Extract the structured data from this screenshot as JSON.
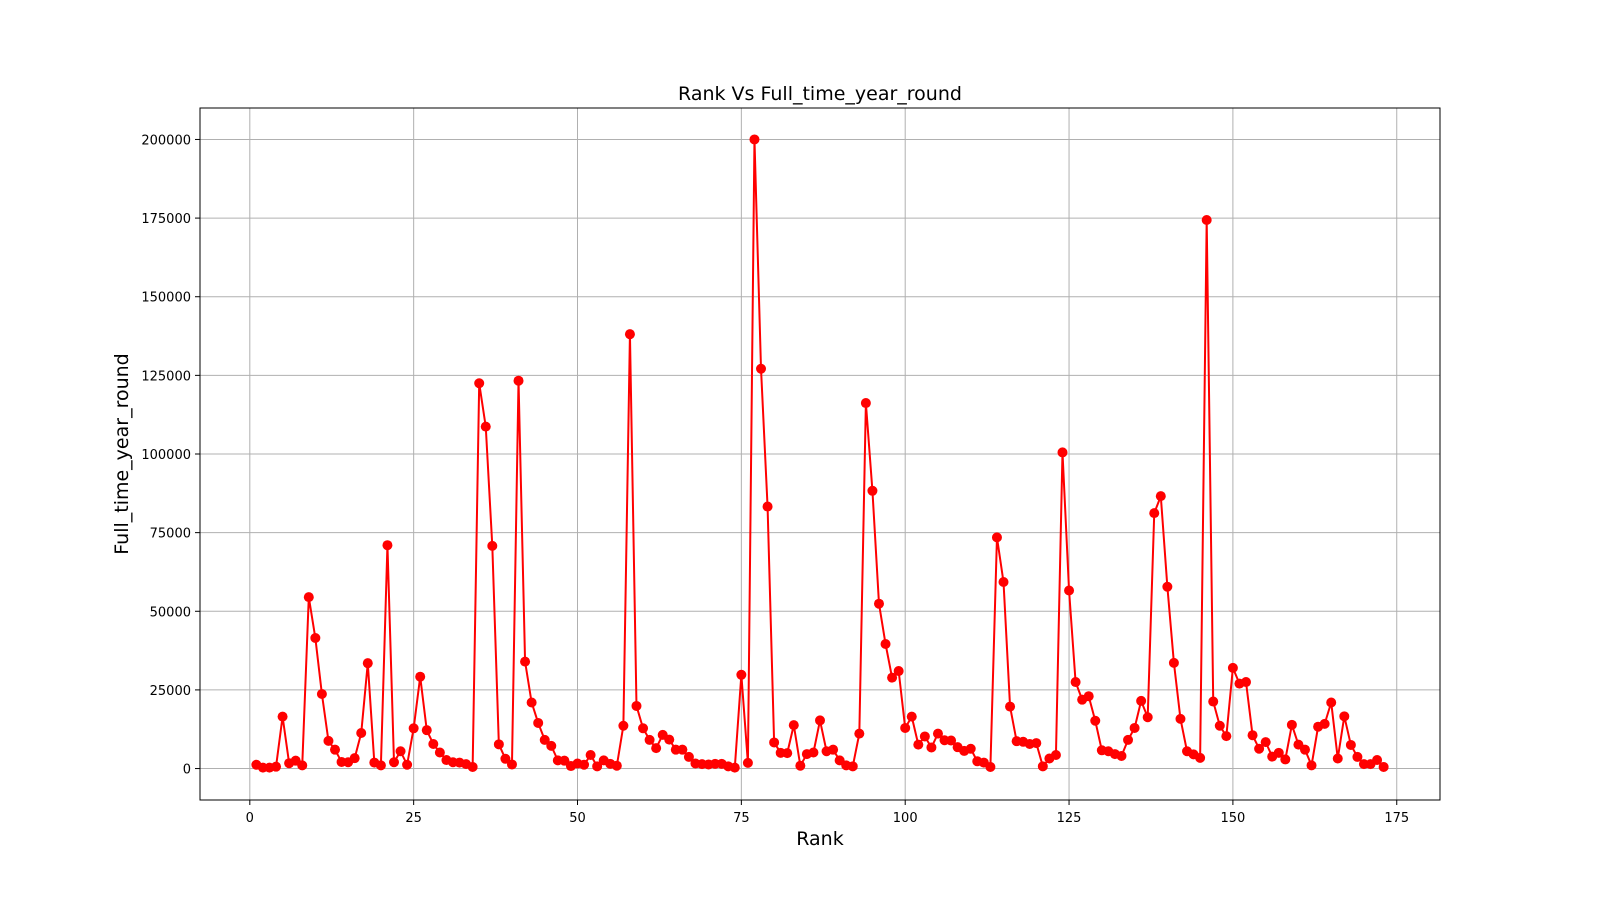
{
  "chart_data": {
    "type": "line",
    "title": "Rank Vs Full_time_year_round",
    "xlabel": "Rank",
    "ylabel": "Full_time_year_round",
    "xlim": [
      -7.6,
      181.6
    ],
    "ylim": [
      -10000,
      210000
    ],
    "xticks": [
      0,
      25,
      50,
      75,
      100,
      125,
      150,
      175
    ],
    "yticks": [
      0,
      25000,
      50000,
      75000,
      100000,
      125000,
      150000,
      175000,
      200000
    ],
    "grid": true,
    "series": [
      {
        "color": "#ff0000",
        "marker": "circle",
        "x": [
          1,
          2,
          3,
          4,
          5,
          6,
          7,
          8,
          9,
          10,
          11,
          12,
          13,
          14,
          15,
          16,
          17,
          18,
          19,
          20,
          21,
          22,
          23,
          24,
          25,
          26,
          27,
          28,
          29,
          30,
          31,
          32,
          33,
          34,
          35,
          36,
          37,
          38,
          39,
          40,
          41,
          42,
          43,
          44,
          45,
          46,
          47,
          48,
          49,
          50,
          51,
          52,
          53,
          54,
          55,
          56,
          57,
          58,
          59,
          60,
          61,
          62,
          63,
          64,
          65,
          66,
          67,
          68,
          69,
          70,
          71,
          72,
          73,
          74,
          75,
          76,
          77,
          78,
          79,
          80,
          81,
          82,
          83,
          84,
          85,
          86,
          87,
          88,
          89,
          90,
          91,
          92,
          93,
          94,
          95,
          96,
          97,
          98,
          99,
          100,
          101,
          102,
          103,
          104,
          105,
          106,
          107,
          108,
          109,
          110,
          111,
          112,
          113,
          114,
          115,
          116,
          117,
          118,
          119,
          120,
          121,
          122,
          123,
          124,
          125,
          126,
          127,
          128,
          129,
          130,
          131,
          132,
          133,
          134,
          135,
          136,
          137,
          138,
          139,
          140,
          141,
          142,
          143,
          144,
          145,
          146,
          147,
          148,
          149,
          150,
          151,
          152,
          153,
          154,
          155,
          156,
          157,
          158,
          159,
          160,
          161,
          162,
          163,
          164,
          165,
          166,
          167,
          168,
          169,
          170,
          171,
          172,
          173
        ],
        "y": [
          1200,
          300,
          300,
          600,
          16500,
          1700,
          2500,
          1000,
          54500,
          41500,
          23700,
          8800,
          6000,
          2100,
          2000,
          3300,
          11300,
          33500,
          1900,
          1000,
          71000,
          2000,
          5500,
          1200,
          12800,
          29200,
          12200,
          7800,
          5100,
          2700,
          2000,
          1900,
          1400,
          500,
          122500,
          108700,
          70800,
          7700,
          3100,
          1300,
          123300,
          34000,
          21000,
          14500,
          9100,
          7200,
          2600,
          2500,
          800,
          1600,
          1200,
          4300,
          700,
          2600,
          1500,
          900,
          13600,
          138100,
          19900,
          12800,
          9100,
          6500,
          10700,
          9200,
          6000,
          6000,
          3700,
          1600,
          1400,
          1300,
          1500,
          1500,
          700,
          300,
          29800,
          1800,
          200000,
          127100,
          83300,
          8300,
          5000,
          4900,
          13800,
          900,
          4600,
          5100,
          15300,
          5500,
          6000,
          2600,
          1000,
          700,
          11100,
          116200,
          88300,
          52400,
          39600,
          28900,
          31000,
          12900,
          16500,
          7600,
          10200,
          6700,
          11100,
          9000,
          8900,
          6800,
          5600,
          6300,
          2300,
          1900,
          500,
          73500,
          59300,
          19700,
          8700,
          8500,
          7800,
          8100,
          700,
          3200,
          4300,
          100500,
          56600,
          27500,
          21900,
          23000,
          15200,
          5800,
          5500,
          4600,
          4000,
          9100,
          12900,
          21500,
          16300,
          81200,
          86600,
          57800,
          33600,
          15800,
          5500,
          4500,
          3400,
          174400,
          21300,
          13600,
          10300,
          32000,
          27000,
          27500,
          10600,
          6300,
          8400,
          3800,
          5000,
          2900,
          13900,
          7600,
          6000,
          1000,
          13300,
          14200,
          21000,
          3200,
          16600,
          7500,
          3700,
          1400,
          1400,
          2700,
          500
        ]
      }
    ]
  }
}
